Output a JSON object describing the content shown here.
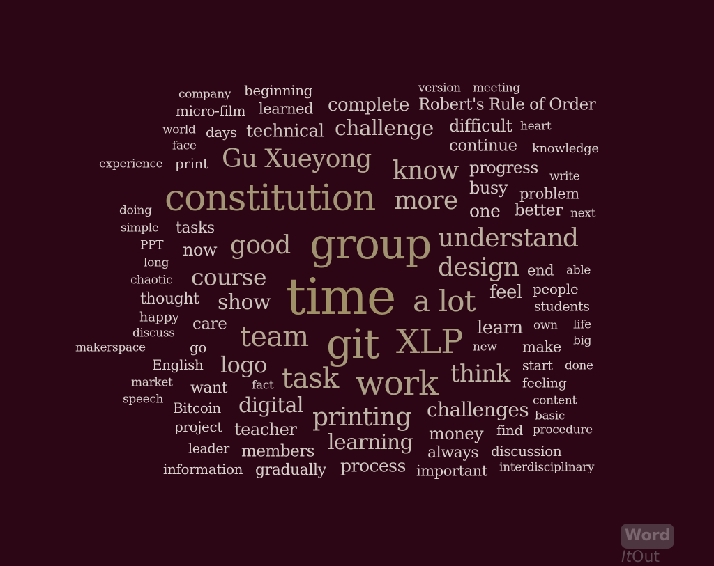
{
  "colors": {
    "background": "#2c0614",
    "light": "#dcccc8",
    "mid": "#c2b3a0",
    "gold": "#9e8f66"
  },
  "logo": {
    "word": "Word",
    "it": "It",
    "out": "Out"
  },
  "words": [
    {
      "text": "time",
      "c": "#9f9068"
    },
    {
      "text": "constitution",
      "c": "#a39576"
    },
    {
      "text": "group",
      "c": "#a09170"
    },
    {
      "text": "git",
      "c": "#a59778"
    },
    {
      "text": "XLP",
      "c": "#a89b80"
    },
    {
      "text": "work",
      "c": "#aca089"
    },
    {
      "text": "Gu Xueyong",
      "c": "#b3a793"
    },
    {
      "text": "a lot",
      "c": "#b0a48e"
    },
    {
      "text": "task",
      "c": "#b1a590"
    },
    {
      "text": "team",
      "c": "#b4a893"
    },
    {
      "text": "good",
      "c": "#b8ac9a"
    },
    {
      "text": "understand",
      "c": "#bbb0a0"
    },
    {
      "text": "design",
      "c": "#bcb1a2"
    },
    {
      "text": "know",
      "c": "#bdb3a4"
    },
    {
      "text": "more",
      "c": "#bdb3a4"
    },
    {
      "text": "think",
      "c": "#bfb5a7"
    },
    {
      "text": "printing",
      "c": "#c0b7aa"
    },
    {
      "text": "course",
      "c": "#c3bab0"
    },
    {
      "text": "logo",
      "c": "#c6bdb4"
    },
    {
      "text": "challenge",
      "c": "#c9c0b8"
    },
    {
      "text": "learning",
      "c": "#c7beb4"
    },
    {
      "text": "digital",
      "c": "#cbc2bb"
    },
    {
      "text": "show",
      "c": "#cbc2bb"
    },
    {
      "text": "challenges",
      "c": "#cdc5be"
    },
    {
      "text": "complete",
      "c": "#cfc7c1"
    },
    {
      "text": "technical",
      "c": "#d0c8c2"
    },
    {
      "text": "feel",
      "c": "#cfc7c1"
    },
    {
      "text": "learn",
      "c": "#d0c8c2"
    },
    {
      "text": "process",
      "c": "#d1c9c4"
    },
    {
      "text": "money",
      "c": "#d0c8c2"
    },
    {
      "text": "teacher",
      "c": "#d2cac5"
    },
    {
      "text": "members",
      "c": "#d3cbc6"
    },
    {
      "text": "progress",
      "c": "#d3cbc6"
    },
    {
      "text": "difficult",
      "c": "#d3cbc6"
    },
    {
      "text": "continue",
      "c": "#d4ccc8"
    },
    {
      "text": "Robert's Rule of Order",
      "c": "#d5cdc9"
    },
    {
      "text": "busy",
      "c": "#d4ccc8"
    },
    {
      "text": "one",
      "c": "#d5cdc9"
    },
    {
      "text": "better",
      "c": "#d6cfcb"
    },
    {
      "text": "problem",
      "c": "#d7d0cc"
    },
    {
      "text": "always",
      "c": "#d6cfcb"
    },
    {
      "text": "important",
      "c": "#d7d0cc"
    },
    {
      "text": "gradually",
      "c": "#d7d0cc"
    },
    {
      "text": "information",
      "c": "#d8d1cd"
    },
    {
      "text": "discussion",
      "c": "#d8d1cd"
    },
    {
      "text": "now",
      "c": "#d4ccc8"
    },
    {
      "text": "care",
      "c": "#d4ccc8"
    },
    {
      "text": "tasks",
      "c": "#d6cfcb"
    },
    {
      "text": "thought",
      "c": "#d7d0cc"
    },
    {
      "text": "learned",
      "c": "#d7d0cc"
    },
    {
      "text": "micro-film",
      "c": "#d8d1cd"
    },
    {
      "text": "beginning",
      "c": "#d8d1cd"
    },
    {
      "text": "want",
      "c": "#d7d0cc"
    },
    {
      "text": "find",
      "c": "#d8d1cd"
    },
    {
      "text": "English",
      "c": "#d8d1cd"
    },
    {
      "text": "Bitcoin",
      "c": "#d8d1cd"
    },
    {
      "text": "project",
      "c": "#d9d2ce"
    },
    {
      "text": "leader",
      "c": "#d9d2ce"
    },
    {
      "text": "print",
      "c": "#d9d2ce"
    },
    {
      "text": "days",
      "c": "#d9d2ce"
    },
    {
      "text": "end",
      "c": "#d9d2ce"
    },
    {
      "text": "make",
      "c": "#d8d1cd"
    },
    {
      "text": "feeling",
      "c": "#d9d2ce"
    },
    {
      "text": "start",
      "c": "#d9d2ce"
    },
    {
      "text": "people",
      "c": "#d9d2ce"
    },
    {
      "text": "students",
      "c": "#d9d2ce"
    },
    {
      "text": "happy",
      "c": "#d9d2ce"
    },
    {
      "text": "go",
      "c": "#d9d2ce"
    },
    {
      "text": "version",
      "c": "#dad3d0"
    },
    {
      "text": "meeting",
      "c": "#dad3d0"
    },
    {
      "text": "company",
      "c": "#dad3d0"
    },
    {
      "text": "world",
      "c": "#dad3d0"
    },
    {
      "text": "face",
      "c": "#dad3d0"
    },
    {
      "text": "experience",
      "c": "#dad3d0"
    },
    {
      "text": "heart",
      "c": "#dad3d0"
    },
    {
      "text": "knowledge",
      "c": "#dad3d0"
    },
    {
      "text": "write",
      "c": "#dad3d0"
    },
    {
      "text": "next",
      "c": "#dad3d0"
    },
    {
      "text": "doing",
      "c": "#dad3d0"
    },
    {
      "text": "simple",
      "c": "#dad3d0"
    },
    {
      "text": "PPT",
      "c": "#dad3d0"
    },
    {
      "text": "long",
      "c": "#dad3d0"
    },
    {
      "text": "chaotic",
      "c": "#dad3d0"
    },
    {
      "text": "discuss",
      "c": "#dad3d0"
    },
    {
      "text": "makerspace",
      "c": "#dad3d0"
    },
    {
      "text": "market",
      "c": "#dad3d0"
    },
    {
      "text": "speech",
      "c": "#dad3d0"
    },
    {
      "text": "fact",
      "c": "#dad3d0"
    },
    {
      "text": "able",
      "c": "#dad3d0"
    },
    {
      "text": "own",
      "c": "#dad3d0"
    },
    {
      "text": "life",
      "c": "#dad3d0"
    },
    {
      "text": "new",
      "c": "#dad3d0"
    },
    {
      "text": "big",
      "c": "#dad3d0"
    },
    {
      "text": "done",
      "c": "#dad3d0"
    },
    {
      "text": "content",
      "c": "#dad3d0"
    },
    {
      "text": "basic",
      "c": "#dad3d0"
    },
    {
      "text": "procedure",
      "c": "#dad3d0"
    },
    {
      "text": "interdisciplinary",
      "c": "#dad3d0"
    }
  ]
}
